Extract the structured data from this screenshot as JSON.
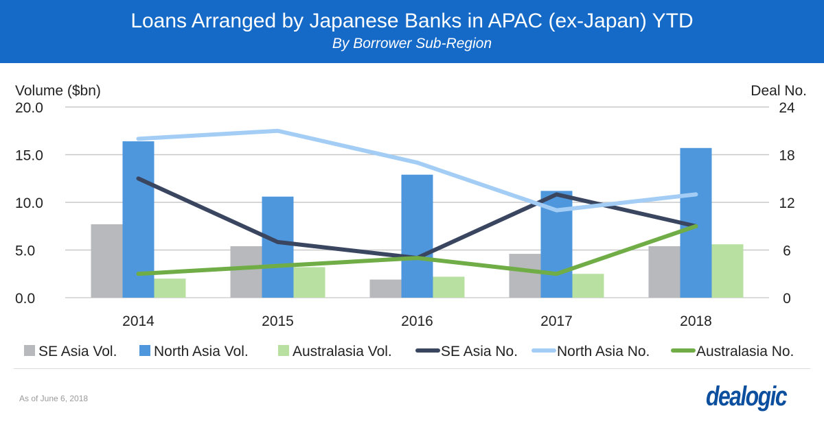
{
  "header": {
    "title": "Loans Arranged by Japanese Banks in APAC (ex-Japan) YTD",
    "subtitle": "By Borrower Sub-Region"
  },
  "footer": {
    "note": "As of June 6, 2018",
    "logo": "dealogic"
  },
  "chart_data": {
    "type": "bar+line",
    "title": "Loans Arranged by Japanese Banks in APAC (ex-Japan) YTD",
    "subtitle": "By Borrower Sub-Region",
    "ylabel": "Volume ($bn)",
    "y2label": "Deal No.",
    "ylim": [
      0,
      20
    ],
    "y2lim": [
      0,
      24
    ],
    "yticks": [
      "0.0",
      "5.0",
      "10.0",
      "15.0",
      "20.0"
    ],
    "y2ticks": [
      "0",
      "6",
      "12",
      "18",
      "24"
    ],
    "categories": [
      "2014",
      "2015",
      "2016",
      "2017",
      "2018"
    ],
    "grid": true,
    "legend": "bottom",
    "bar_series": [
      {
        "name": "SE Asia Vol.",
        "color": "#b7b9bd",
        "values": [
          7.7,
          5.4,
          1.9,
          4.6,
          5.4
        ]
      },
      {
        "name": "North Asia Vol.",
        "color": "#4e97dd",
        "values": [
          16.4,
          10.6,
          12.9,
          11.2,
          15.7
        ]
      },
      {
        "name": "Australasia Vol.",
        "color": "#b8e0a0",
        "values": [
          2.0,
          3.2,
          2.2,
          2.5,
          5.6
        ]
      }
    ],
    "line_series": [
      {
        "name": "SE Asia No.",
        "color": "#3a4660",
        "values": [
          15,
          7,
          5,
          13,
          9
        ]
      },
      {
        "name": "North Asia No.",
        "color": "#a3cdf5",
        "values": [
          20,
          21,
          17,
          11,
          13
        ]
      },
      {
        "name": "Australasia No.",
        "color": "#70ad47",
        "values": [
          3,
          4,
          5,
          3,
          9
        ]
      }
    ]
  }
}
